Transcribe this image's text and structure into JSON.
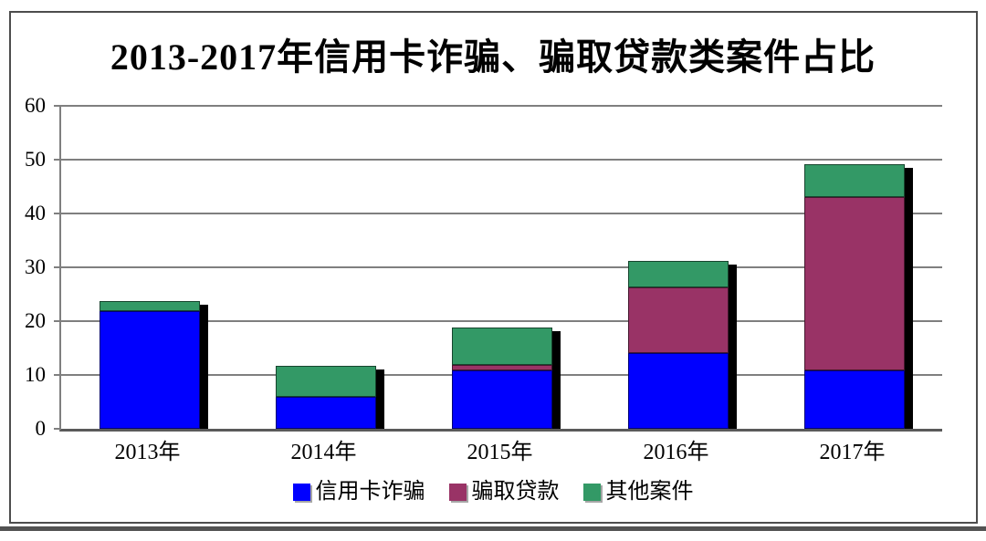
{
  "title": "2013-2017年信用卡诈骗、骗取贷款类案件占比",
  "colors": {
    "credit_card_fraud": "#0000FF",
    "loan_fraud": "#993366",
    "other_cases": "#339966",
    "gridline": "#7f7f7f",
    "frame_border": "#4d4d4d",
    "bar_shadow": "#000000"
  },
  "chart_data": {
    "type": "bar",
    "stacked": true,
    "title": "2013-2017年信用卡诈骗、骗取贷款类案件占比",
    "categories": [
      "2013年",
      "2014年",
      "2015年",
      "2016年",
      "2017年"
    ],
    "series": [
      {
        "name": "信用卡诈骗",
        "color": "#0000FF",
        "values": [
          21.8,
          6.0,
          10.8,
          14.0,
          10.9
        ]
      },
      {
        "name": "骗取贷款",
        "color": "#993366",
        "values": [
          0,
          0,
          1.0,
          12.2,
          32.1
        ]
      },
      {
        "name": "其他案件",
        "color": "#339966",
        "values": [
          2.0,
          5.7,
          7.0,
          5.0,
          6.2
        ]
      }
    ],
    "totals": [
      23.8,
      11.7,
      18.8,
      31.2,
      49.2
    ],
    "xlabel": "",
    "ylabel": "",
    "ylim": [
      0,
      60
    ],
    "yticks": [
      0,
      10,
      20,
      30,
      40,
      50,
      60
    ],
    "grid": true,
    "legend_position": "bottom"
  }
}
